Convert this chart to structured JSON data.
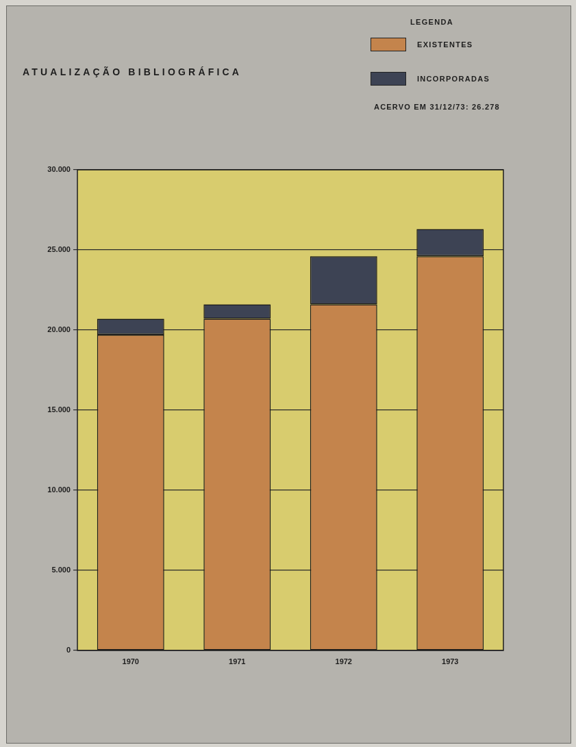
{
  "chart_data": {
    "type": "bar",
    "title": "ATUALIZAÇÃO BIBLIOGRÁFICA",
    "legend_title": "LEGENDA",
    "legend": "top right",
    "stacked": true,
    "grid": "y",
    "categories": [
      "1970",
      "1971",
      "1972",
      "1973"
    ],
    "series": [
      {
        "name": "EXISTENTES",
        "color": "#c4844c",
        "values": [
          19700,
          20700,
          21600,
          24600
        ]
      },
      {
        "name": "INCORPORADAS",
        "color": "#3d4354",
        "values": [
          1000,
          900,
          3000,
          1700
        ]
      }
    ],
    "ylim": [
      0,
      30000
    ],
    "yticks": [
      0,
      {
        "value": 5000,
        "label": "5.000"
      },
      {
        "value": 10000,
        "label": "10.000"
      },
      {
        "value": 15000,
        "label": "15.000"
      },
      {
        "value": 20000,
        "label": "20.000"
      },
      {
        "value": 25000,
        "label": "25.000"
      },
      {
        "value": 30000,
        "label": "30.000"
      }
    ],
    "annotations": [
      "ACERVO EM 31/12/73: 26.278"
    ]
  }
}
